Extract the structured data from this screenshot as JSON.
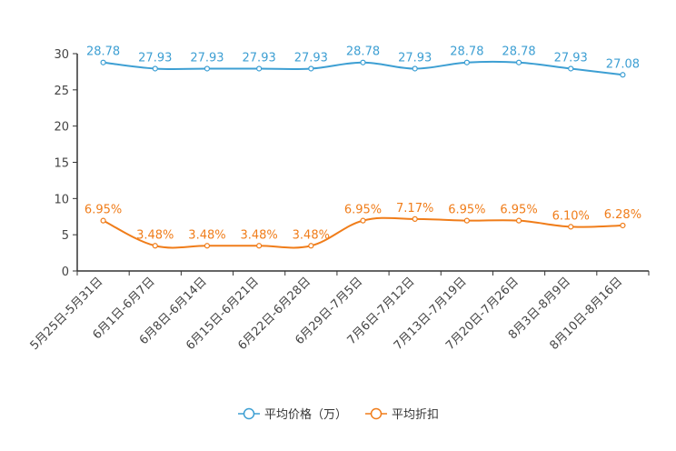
{
  "chart_data": {
    "type": "line",
    "title": "",
    "xlabel": "",
    "ylabel": "",
    "ylim": [
      0,
      30
    ],
    "yticks": [
      0,
      5,
      10,
      15,
      20,
      25,
      30
    ],
    "grid": false,
    "legend_position": "bottom-center",
    "categories": [
      "5月25日-5月31日",
      "6月1日-6月7日",
      "6月8日-6月14日",
      "6月15日-6月21日",
      "6月22日-6月28日",
      "6月29日-7月5日",
      "7月6日-7月12日",
      "7月13日-7月19日",
      "7月20日-7月26日",
      "8月3日-8月9日",
      "8月10日-8月16日"
    ],
    "series": [
      {
        "name": "平均价格（万）",
        "color": "#3d9fd3",
        "values": [
          28.78,
          27.93,
          27.93,
          27.93,
          27.93,
          28.78,
          27.93,
          28.78,
          28.78,
          27.93,
          27.08
        ],
        "labels": [
          "28.78",
          "27.93",
          "27.93",
          "27.93",
          "27.93",
          "28.78",
          "27.93",
          "28.78",
          "28.78",
          "27.93",
          "27.08"
        ]
      },
      {
        "name": "平均折扣",
        "color": "#f07d1a",
        "values": [
          6.95,
          3.48,
          3.48,
          3.48,
          3.48,
          6.95,
          7.17,
          6.95,
          6.95,
          6.1,
          6.28
        ],
        "labels": [
          "6.95%",
          "3.48%",
          "3.48%",
          "3.48%",
          "3.48%",
          "6.95%",
          "7.17%",
          "6.95%",
          "6.95%",
          "6.10%",
          "6.28%"
        ]
      }
    ]
  }
}
